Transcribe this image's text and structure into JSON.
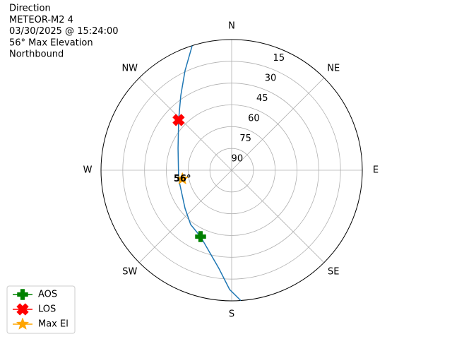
{
  "chart_data": {
    "type": "polar",
    "title": [
      "Direction",
      "METEOR-M2 4",
      "03/30/2025 @ 15:24:00",
      "56° Max Elevation",
      "Northbound"
    ],
    "theta_ticks": [
      {
        "value": 0,
        "label": "N"
      },
      {
        "value": 45,
        "label": "NE"
      },
      {
        "value": 90,
        "label": "E"
      },
      {
        "value": 135,
        "label": "SE"
      },
      {
        "value": 180,
        "label": "S"
      },
      {
        "value": 225,
        "label": "SW"
      },
      {
        "value": 270,
        "label": "W"
      },
      {
        "value": 315,
        "label": "NW"
      }
    ],
    "rlim": [
      90,
      0
    ],
    "rticks": [
      15,
      30,
      45,
      60,
      75,
      90
    ],
    "grid": true,
    "track": {
      "color": "#1f77b4",
      "azimuth": [
        342.4,
        334.9,
        325.8,
        313.4,
        292.2,
        260.9,
        230.7,
        217,
        205.1,
        187.4,
        181,
        176
      ],
      "elevation": [
        0,
        14.3,
        27.7,
        39.7,
        50.1,
        53,
        48.5,
        43.1,
        39.5,
        21.8,
        7.8,
        0
      ]
    },
    "markers": [
      {
        "name": "AOS",
        "color": "green",
        "marker": "plus",
        "azimuth": 205.1,
        "elevation": 39.5
      },
      {
        "name": "LOS",
        "color": "red",
        "marker": "x",
        "azimuth": 313.4,
        "elevation": 39.7
      },
      {
        "name": "Max El",
        "color": "orange",
        "marker": "star",
        "azimuth": 260,
        "elevation": 55.5
      }
    ],
    "annotation": {
      "text": "56°",
      "azimuth": 260,
      "elevation": 55.5
    },
    "legend": "lower left"
  }
}
